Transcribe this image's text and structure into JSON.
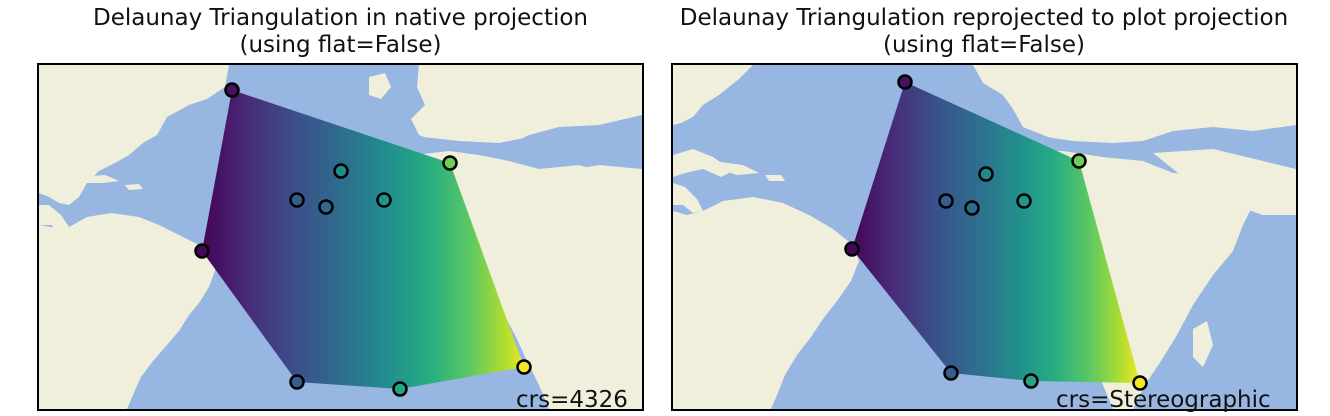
{
  "colors": {
    "ocean": "#97b6e1",
    "land": "#efefdb",
    "frame": "#000000",
    "marker_edge": "#000000"
  },
  "colormap": "viridis",
  "panels": [
    {
      "title_line1": "Delaunay Triangulation in native projection",
      "title_line2": "(using flat=False)",
      "crs_label": "crs=4326",
      "points": [
        {
          "value": 0.05
        },
        {
          "value": 0.02
        },
        {
          "value": 0.3
        },
        {
          "value": 0.47
        },
        {
          "value": 0.3
        },
        {
          "value": 0.35
        },
        {
          "value": 0.52
        },
        {
          "value": 0.78
        },
        {
          "value": 0.58
        },
        {
          "value": 0.98
        }
      ]
    },
    {
      "title_line1": "Delaunay Triangulation reprojected to plot projection",
      "title_line2": "(using flat=False)",
      "crs_label": "crs=Stereographic",
      "points": [
        {
          "value": 0.05
        },
        {
          "value": 0.02
        },
        {
          "value": 0.3
        },
        {
          "value": 0.47
        },
        {
          "value": 0.3
        },
        {
          "value": 0.35
        },
        {
          "value": 0.52
        },
        {
          "value": 0.78
        },
        {
          "value": 0.58
        },
        {
          "value": 0.98
        }
      ]
    }
  ]
}
